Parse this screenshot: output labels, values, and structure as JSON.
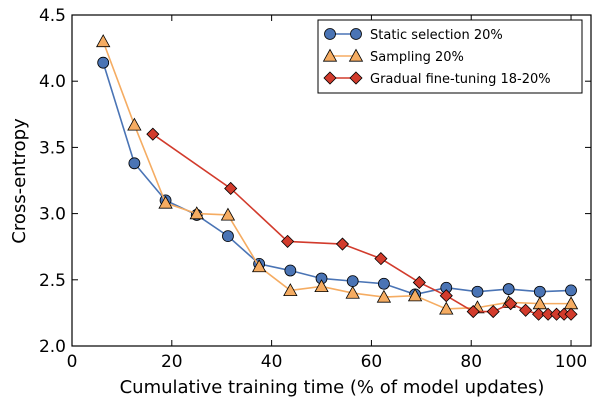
{
  "chart_data": {
    "type": "line",
    "title": "",
    "xlabel": "Cumulative training time (% of model updates)",
    "ylabel": "Cross-entropy",
    "xlim": [
      0,
      104
    ],
    "ylim": [
      2.0,
      4.5
    ],
    "x_ticks": [
      0,
      20,
      40,
      60,
      80,
      100
    ],
    "y_ticks": [
      2.0,
      2.5,
      3.0,
      3.5,
      4.0,
      4.5
    ],
    "x_tick_labels": [
      "0",
      "20",
      "40",
      "60",
      "80",
      "100"
    ],
    "y_tick_labels": [
      "2.0",
      "2.5",
      "3.0",
      "3.5",
      "4.0",
      "4.5"
    ],
    "grid": false,
    "legend_position": "top-right",
    "series": [
      {
        "name": "Static selection 20%",
        "marker": "circle",
        "color": "#4a74b5",
        "points": [
          [
            6.25,
            4.14
          ],
          [
            12.5,
            3.38
          ],
          [
            18.75,
            3.1
          ],
          [
            25,
            2.99
          ],
          [
            31.25,
            2.83
          ],
          [
            37.5,
            2.62
          ],
          [
            43.75,
            2.57
          ],
          [
            50,
            2.51
          ],
          [
            56.25,
            2.49
          ],
          [
            62.5,
            2.47
          ],
          [
            68.75,
            2.39
          ],
          [
            75,
            2.44
          ],
          [
            81.25,
            2.41
          ],
          [
            87.5,
            2.43
          ],
          [
            93.75,
            2.41
          ],
          [
            100,
            2.42
          ]
        ]
      },
      {
        "name": "Sampling 20%",
        "marker": "triangle",
        "color": "#f5ac62",
        "points": [
          [
            6.25,
            4.3
          ],
          [
            12.5,
            3.67
          ],
          [
            18.75,
            3.08
          ],
          [
            25,
            3.0
          ],
          [
            31.25,
            2.99
          ],
          [
            37.5,
            2.6
          ],
          [
            43.75,
            2.42
          ],
          [
            50,
            2.45
          ],
          [
            56.25,
            2.4
          ],
          [
            62.5,
            2.37
          ],
          [
            68.75,
            2.38
          ],
          [
            75,
            2.28
          ],
          [
            81.25,
            2.29
          ],
          [
            87.5,
            2.33
          ],
          [
            93.75,
            2.32
          ],
          [
            100,
            2.32
          ]
        ]
      },
      {
        "name": "Gradual fine-tuning 18-20%",
        "marker": "diamond",
        "color": "#d23b2c",
        "points": [
          [
            16.2,
            3.6
          ],
          [
            31.8,
            3.19
          ],
          [
            43.2,
            2.79
          ],
          [
            54.2,
            2.77
          ],
          [
            61.9,
            2.66
          ],
          [
            69.6,
            2.48
          ],
          [
            75,
            2.38
          ],
          [
            80.4,
            2.26
          ],
          [
            84.4,
            2.26
          ],
          [
            87.9,
            2.32
          ],
          [
            90.9,
            2.27
          ],
          [
            93.5,
            2.24
          ],
          [
            95.4,
            2.24
          ],
          [
            97.1,
            2.24
          ],
          [
            98.6,
            2.24
          ],
          [
            100,
            2.24
          ]
        ]
      }
    ]
  }
}
